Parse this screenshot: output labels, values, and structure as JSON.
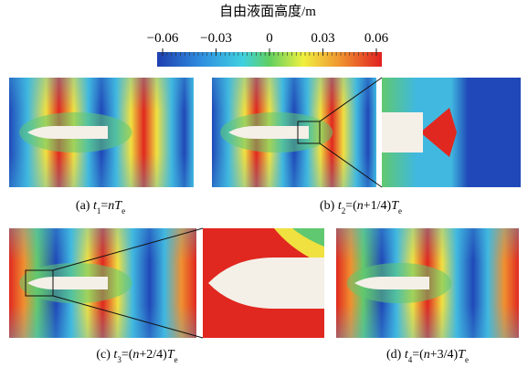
{
  "colorbar": {
    "title": "自由液面高度/m",
    "range": [
      -0.06,
      0.06
    ],
    "ticks": [
      {
        "value": -0.06,
        "label": "−0.06"
      },
      {
        "value": -0.03,
        "label": "−0.03"
      },
      0,
      0.03,
      0.06
    ]
  },
  "panels": [
    {
      "caption": [
        "(a) ",
        "t",
        "1",
        "=",
        "n",
        "T",
        "e"
      ]
    },
    {
      "caption": [
        "(b) ",
        "t",
        "2",
        "=(",
        "n",
        "+1/4)",
        "T",
        "e"
      ]
    },
    {
      "caption": [
        "(c) ",
        "t",
        "3",
        "=(",
        "n",
        "+2/4)",
        "T",
        "e"
      ]
    },
    {
      "caption": [
        "(d) ",
        "t",
        "4",
        "=(",
        "n",
        "+3/4)",
        "T",
        "e"
      ]
    }
  ]
}
